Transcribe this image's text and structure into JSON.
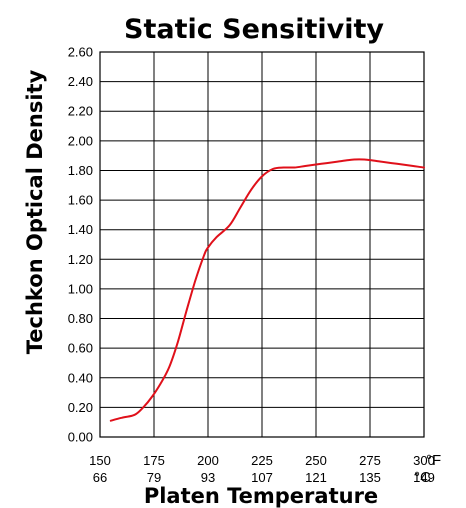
{
  "chart_data": {
    "type": "line",
    "title": "Static Sensitivity",
    "xlabel": "Platen Temperature",
    "ylabel": "Techkon Optical Density",
    "x_unit_primary": "°F",
    "x_unit_secondary": "°C",
    "xlim": [
      150,
      300
    ],
    "ylim": [
      0,
      2.6
    ],
    "x_ticks": [
      150,
      175,
      200,
      225,
      250,
      275,
      300
    ],
    "x_tick_labels": [
      "150",
      "175",
      "200",
      "225",
      "250",
      "275",
      "300"
    ],
    "x_tick_labels_secondary": [
      "66",
      "79",
      "93",
      "107",
      "121",
      "135",
      "149"
    ],
    "y_ticks": [
      0,
      0.2,
      0.4,
      0.6,
      0.8,
      1.0,
      1.2,
      1.4,
      1.6,
      1.8,
      2.0,
      2.2,
      2.4,
      2.6
    ],
    "y_tick_labels": [
      "0.00",
      "0.20",
      "0.40",
      "0.60",
      "0.80",
      "1.00",
      "1.20",
      "1.40",
      "1.60",
      "1.80",
      "2.00",
      "2.20",
      "2.40",
      "2.60"
    ],
    "grid": true,
    "series_color": "#e0101a",
    "series": [
      {
        "x": [
          155,
          160,
          166,
          170,
          174,
          178,
          182,
          186,
          190,
          194,
          198,
          200,
          204,
          210,
          215,
          220,
          225,
          230,
          235,
          240,
          245,
          250,
          255,
          260,
          265,
          270,
          275,
          280,
          285,
          290,
          295,
          300
        ],
        "y": [
          0.11,
          0.13,
          0.15,
          0.2,
          0.27,
          0.36,
          0.47,
          0.64,
          0.85,
          1.05,
          1.22,
          1.28,
          1.35,
          1.43,
          1.55,
          1.67,
          1.76,
          1.81,
          1.82,
          1.82,
          1.83,
          1.84,
          1.85,
          1.86,
          1.87,
          1.875,
          1.87,
          1.86,
          1.85,
          1.84,
          1.83,
          1.82
        ]
      }
    ]
  }
}
